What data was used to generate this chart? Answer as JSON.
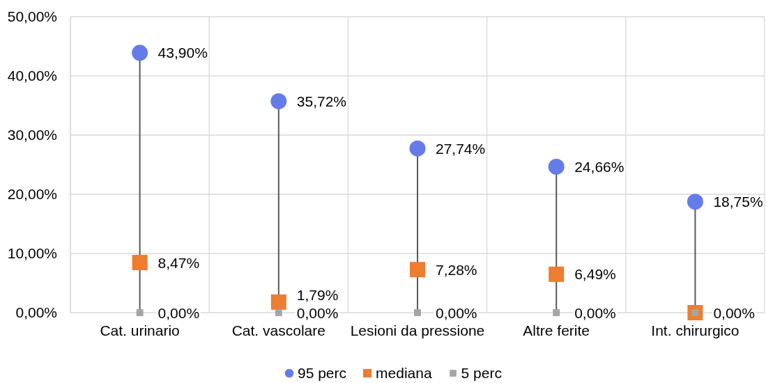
{
  "chart_data": {
    "type": "scatter",
    "categories": [
      "Cat. urinario",
      "Cat. vascolare",
      "Lesioni da pressione",
      "Altre ferite",
      "Int. chirurgico"
    ],
    "series": [
      {
        "name": "95 perc",
        "type": "lollipop",
        "color": "#657be9",
        "marker": "circle",
        "values": [
          43.9,
          35.72,
          27.74,
          24.66,
          18.75
        ],
        "value_labels": [
          "43,90%",
          "35,72%",
          "27,74%",
          "24,66%",
          "18,75%"
        ]
      },
      {
        "name": "mediana",
        "type": "scatter",
        "color": "#ed7d31",
        "marker": "square",
        "values": [
          8.47,
          1.79,
          7.28,
          6.49,
          0
        ],
        "value_labels": [
          "8,47%",
          "1,79%",
          "7,28%",
          "6,49%",
          null
        ]
      },
      {
        "name": "5 perc",
        "type": "scatter",
        "color": "#a5a5a5",
        "marker": "square",
        "values": [
          0,
          0,
          0,
          0,
          0
        ],
        "value_labels": [
          "0,00%",
          "0,00%",
          "0,00%",
          "0,00%",
          "0,00%"
        ]
      }
    ],
    "ylim": [
      0,
      50
    ],
    "yticks": [
      {
        "value": 0,
        "label": "0,00%"
      },
      {
        "value": 10,
        "label": "10,00%"
      },
      {
        "value": 20,
        "label": "20,00%"
      },
      {
        "value": 30,
        "label": "30,00%"
      },
      {
        "value": 40,
        "label": "40,00%"
      },
      {
        "value": 50,
        "label": "50,00%"
      }
    ],
    "grid": true,
    "legend": "bottom"
  }
}
